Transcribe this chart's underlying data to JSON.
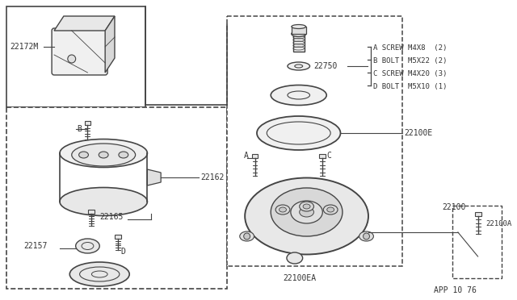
{
  "bg_color": "#ffffff",
  "line_color": "#444444",
  "text_color": "#333333",
  "app_code": "APP 10 76",
  "bom_lines": [
    [
      "A",
      "SCREW",
      "M4X8 ",
      "(2)"
    ],
    [
      "B",
      "BOLT ",
      "M5X22",
      "(2)"
    ],
    [
      "C",
      "SCREW",
      "M4X20",
      "(3)"
    ],
    [
      "D",
      "BOLT ",
      "M5X10",
      "(1)"
    ]
  ]
}
